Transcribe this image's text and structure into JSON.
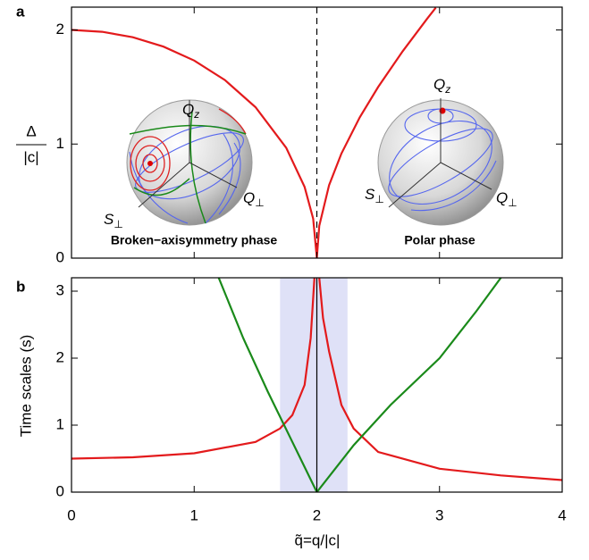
{
  "chart_data": [
    {
      "type": "line",
      "panel_label": "a",
      "ylabel_numerator": "Δ",
      "ylabel_denominator": "|c|",
      "xlim": [
        0,
        4
      ],
      "ylim": [
        0,
        2.2
      ],
      "xticks": [
        0,
        1,
        2,
        3,
        4
      ],
      "yticks": [
        0,
        1,
        2
      ],
      "show_xtick_labels": false,
      "vline": 2,
      "vline_style": "dashed",
      "series": [
        {
          "color": "#e31a1c",
          "x": [
            0,
            0.25,
            0.5,
            0.75,
            1,
            1.25,
            1.5,
            1.75,
            1.9,
            1.97,
            2
          ],
          "values": [
            2,
            1.984,
            1.936,
            1.854,
            1.732,
            1.561,
            1.323,
            0.968,
            0.624,
            0.345,
            0
          ]
        },
        {
          "color": "#e31a1c",
          "x": [
            2,
            2.02,
            2.1,
            2.2,
            2.35,
            2.5,
            2.7,
            2.9,
            2.97
          ],
          "values": [
            0,
            0.283,
            0.64,
            0.917,
            1.234,
            1.5,
            1.814,
            2.1,
            2.195
          ]
        }
      ],
      "insets": [
        {
          "phase": "Broken−axisymmetry phase",
          "qz": [
            "Q",
            "z"
          ],
          "sperp": [
            "S",
            "⊥"
          ],
          "qperp": [
            "Q",
            "⊥"
          ]
        },
        {
          "phase": "Polar phase",
          "qz": [
            "Q",
            "z"
          ],
          "sperp": [
            "S",
            "⊥"
          ],
          "qperp": [
            "Q",
            "⊥"
          ]
        }
      ]
    },
    {
      "type": "line",
      "panel_label": "b",
      "ylabel": "Time scales (s)",
      "xlabel": "q̃=q/|c|",
      "xlim": [
        0,
        4
      ],
      "ylim": [
        0,
        3.2
      ],
      "xticks": [
        0,
        1,
        2,
        3,
        4
      ],
      "yticks": [
        0,
        1,
        2,
        3
      ],
      "show_xtick_labels": true,
      "vline": 2,
      "vline_style": "solid",
      "shaded_region": [
        1.7,
        2.25
      ],
      "shaded_color": "#dfe1f7",
      "series": [
        {
          "color": "#e31a1c",
          "x": [
            0,
            0.5,
            1,
            1.5,
            1.7,
            1.8,
            1.9,
            1.95,
            1.98
          ],
          "values": [
            0.5,
            0.52,
            0.58,
            0.75,
            0.95,
            1.15,
            1.6,
            2.3,
            3.2
          ]
        },
        {
          "color": "#e31a1c",
          "x": [
            2.02,
            2.05,
            2.1,
            2.2,
            2.3,
            2.5,
            3,
            3.5,
            4
          ],
          "values": [
            3.2,
            2.6,
            2.1,
            1.3,
            0.95,
            0.6,
            0.35,
            0.25,
            0.18
          ]
        },
        {
          "color": "#1a8a1a",
          "x": [
            1.2,
            1.4,
            1.6,
            1.8,
            2
          ],
          "values": [
            3.2,
            2.3,
            1.5,
            0.75,
            0
          ]
        },
        {
          "color": "#1a8a1a",
          "x": [
            2,
            2.3,
            2.6,
            3,
            3.3,
            3.5
          ],
          "values": [
            0,
            0.7,
            1.3,
            2,
            2.7,
            3.2
          ]
        }
      ]
    }
  ]
}
